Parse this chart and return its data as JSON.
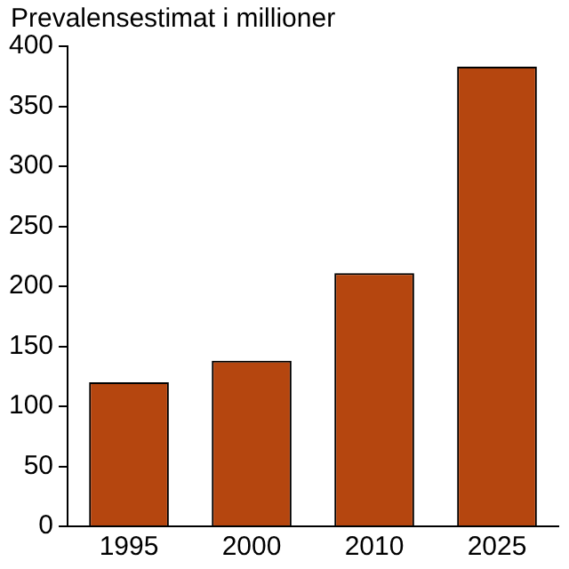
{
  "chart_data": {
    "type": "bar",
    "ylabel": "Prevalensestimat i millioner",
    "categories": [
      "1995",
      "2000",
      "2010",
      "2025"
    ],
    "values": [
      120,
      138,
      211,
      383
    ],
    "color": "#b5460f",
    "ylim": [
      0,
      400
    ],
    "yticks": [
      0,
      50,
      100,
      150,
      200,
      250,
      300,
      350,
      400
    ],
    "grid": false,
    "legend": false
  }
}
